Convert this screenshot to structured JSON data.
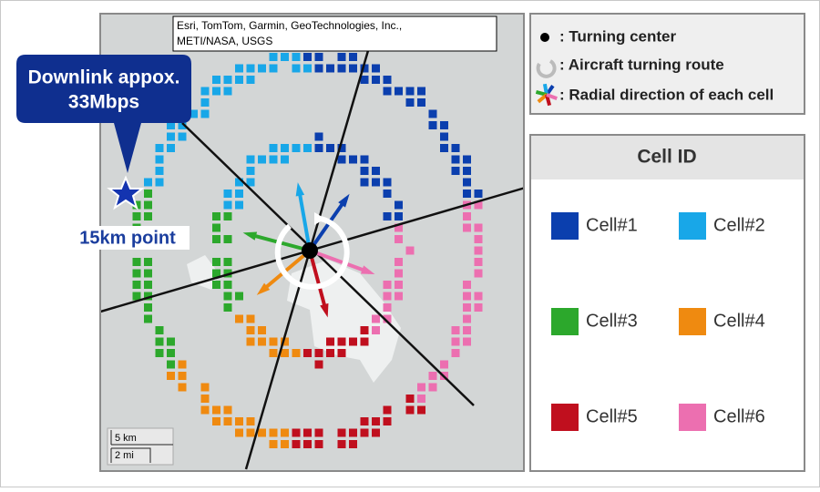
{
  "attribution": [
    "Esri, TomTom, Garmin, GeoTechnologies, Inc.,",
    "METI/NASA, USGS"
  ],
  "callout": [
    "Downlink appox.",
    "33Mbps"
  ],
  "point_label": "15km point",
  "scale": {
    "km": "5 km",
    "mi": "2 mi"
  },
  "legend": [
    ": Turning center",
    ": Aircraft turning route",
    ": Radial direction of each cell"
  ],
  "cell_id": {
    "title": "Cell ID",
    "cells": [
      {
        "label": "Cell#1",
        "color": "#0b3fae"
      },
      {
        "label": "Cell#2",
        "color": "#18a7e8"
      },
      {
        "label": "Cell#3",
        "color": "#2ca82c"
      },
      {
        "label": "Cell#4",
        "color": "#ef8a10"
      },
      {
        "label": "Cell#5",
        "color": "#c00f1e"
      },
      {
        "label": "Cell#6",
        "color": "#ec6fb0"
      }
    ]
  }
}
